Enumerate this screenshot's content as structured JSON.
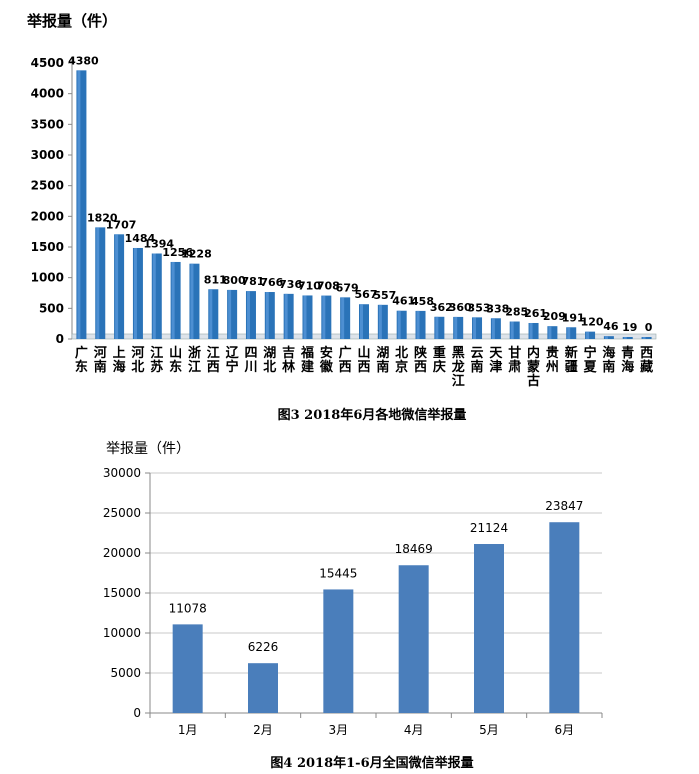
{
  "chart_data": [
    {
      "type": "bar",
      "title": "",
      "ylabel": "举报量（件）",
      "caption": "图3  2018年6月各地微信举报量",
      "ylim": [
        0,
        4500
      ],
      "yticks": [
        0,
        500,
        1000,
        1500,
        2000,
        2500,
        3000,
        3500,
        4000,
        4500
      ],
      "grid": false,
      "bar_color": "#2A73B8",
      "categories": [
        "广东",
        "河南",
        "上海",
        "河北",
        "江苏",
        "山东",
        "浙江",
        "江西",
        "辽宁",
        "四川",
        "湖北",
        "吉林",
        "福建",
        "安徽",
        "广西",
        "山西",
        "湖南",
        "北京",
        "陕西",
        "重庆",
        "黑龙江",
        "云南",
        "天津",
        "甘肃",
        "内蒙古",
        "贵州",
        "新疆",
        "宁夏",
        "海南",
        "青海",
        "西藏"
      ],
      "values": [
        4380,
        1820,
        1707,
        1484,
        1394,
        1256,
        1228,
        811,
        800,
        781,
        766,
        736,
        710,
        708,
        679,
        567,
        557,
        461,
        458,
        362,
        360,
        353,
        338,
        285,
        261,
        209,
        191,
        120,
        46,
        19,
        0
      ],
      "data_labels": [
        "4380",
        "1820",
        "1707",
        "1484",
        "1394",
        "1256",
        "1228",
        "811",
        "800",
        "781",
        "766",
        "736",
        "710",
        "708",
        "679",
        "567",
        "557",
        "461",
        "458",
        "362",
        "360",
        "353",
        "338",
        "285",
        "261",
        "209",
        "191",
        "120",
        "46",
        "19",
        "0"
      ]
    },
    {
      "type": "bar",
      "title": "",
      "ylabel": "举报量（件）",
      "caption": "图4  2018年1-6月全国微信举报量",
      "ylim": [
        0,
        30000
      ],
      "yticks": [
        0,
        5000,
        10000,
        15000,
        20000,
        25000,
        30000
      ],
      "grid": true,
      "bar_color": "#4A7EBB",
      "categories": [
        "1月",
        "2月",
        "3月",
        "4月",
        "5月",
        "6月"
      ],
      "values": [
        11078,
        6226,
        15445,
        18469,
        21124,
        23847
      ],
      "data_labels": [
        "11078",
        "6226",
        "15445",
        "18469",
        "21124",
        "23847"
      ]
    }
  ]
}
